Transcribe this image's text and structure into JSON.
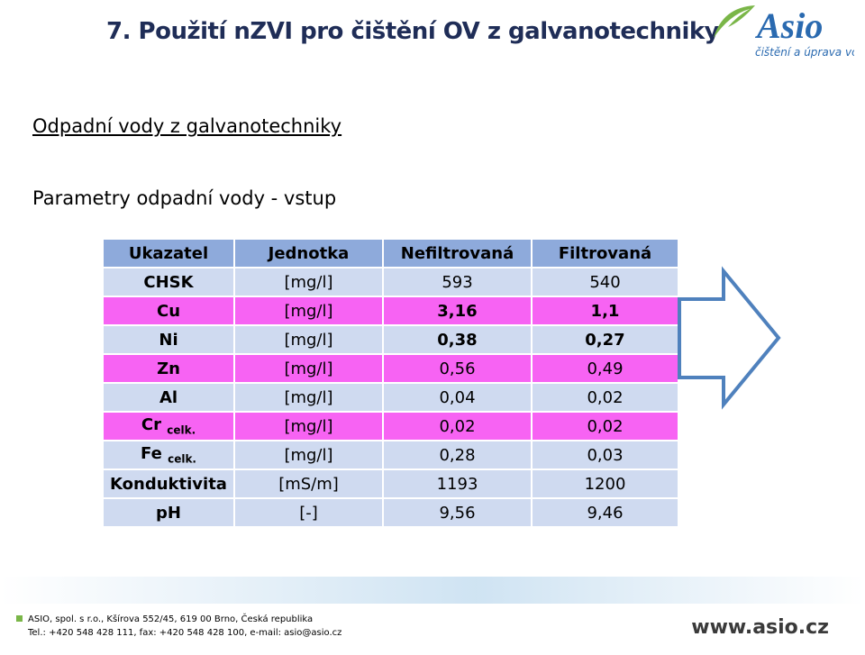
{
  "title": "7. Použití nZVI pro čištění OV z galvanotechniky",
  "subtitle": "Odpadní vody z galvanotechniky",
  "section": "Parametry odpadní vody - vstup",
  "logo": {
    "name": "Asio",
    "tagline": "čištění a úprava vod"
  },
  "table": {
    "header": [
      "Ukazatel",
      "Jednotka",
      "Nefiltrovaná",
      "Filtrovaná"
    ],
    "rows": [
      [
        "CHSK",
        "[mg/l]",
        "593",
        "540"
      ],
      [
        "Cu",
        "[mg/l]",
        "3,16",
        "1,1"
      ],
      [
        "Ni",
        "[mg/l]",
        "0,38",
        "0,27"
      ],
      [
        "Zn",
        "[mg/l]",
        "0,56",
        "0,49"
      ],
      [
        "Al",
        "[mg/l]",
        "0,04",
        "0,02"
      ],
      [
        {
          "main": "Cr",
          "sub": "celk."
        },
        "[mg/l]",
        "0,02",
        "0,02"
      ],
      [
        {
          "main": "Fe",
          "sub": "celk."
        },
        "[mg/l]",
        "0,28",
        "0,03"
      ],
      [
        "Konduktivita",
        "[mS/m]",
        "1193",
        "1200"
      ],
      [
        "pH",
        "[-]",
        "9,56",
        "9,46"
      ]
    ]
  },
  "footer": {
    "line1": "ASIO, spol. s r.o., Kšírova 552/45, 619 00 Brno, Česká republika",
    "line2": "Tel.: +420 548 428 111, fax: +420 548 428 100, e-mail: asio@asio.cz",
    "web": "www.asio.cz"
  }
}
